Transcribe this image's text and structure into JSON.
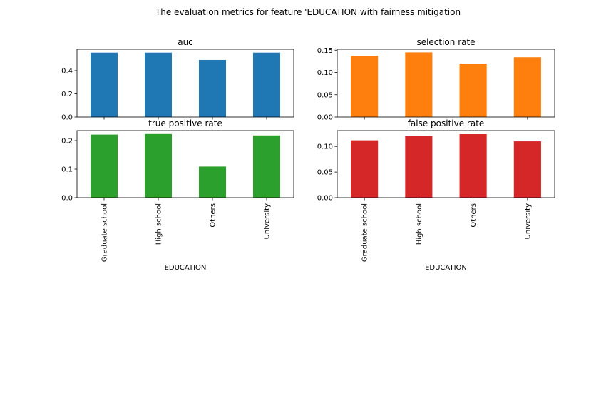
{
  "figure": {
    "title": "The evaluation metrics for feature 'EDUCATION with fairness mitigation"
  },
  "chart_data": [
    {
      "type": "bar",
      "title": "auc",
      "categories": [
        "Graduate school",
        "High school",
        "Others",
        "University"
      ],
      "values": [
        0.555,
        0.555,
        0.492,
        0.555
      ],
      "color": "#1f77b4",
      "ylim": [
        0,
        0.584
      ],
      "yticks": [
        0.0,
        0.2,
        0.4
      ],
      "ytick_labels": [
        "0.0",
        "0.2",
        "0.4"
      ],
      "xlabel": "",
      "show_category_labels": false
    },
    {
      "type": "bar",
      "title": "selection rate",
      "categories": [
        "Graduate school",
        "High school",
        "Others",
        "University"
      ],
      "values": [
        0.137,
        0.145,
        0.12,
        0.134
      ],
      "color": "#ff7f0e",
      "ylim": [
        0,
        0.152
      ],
      "yticks": [
        0.0,
        0.05,
        0.1,
        0.15
      ],
      "ytick_labels": [
        "0.00",
        "0.05",
        "0.10",
        "0.15"
      ],
      "xlabel": "",
      "show_category_labels": false
    },
    {
      "type": "bar",
      "title": "true positive rate",
      "categories": [
        "Graduate school",
        "High school",
        "Others",
        "University"
      ],
      "values": [
        0.221,
        0.223,
        0.109,
        0.218
      ],
      "color": "#2ca02c",
      "ylim": [
        0,
        0.235
      ],
      "yticks": [
        0.0,
        0.1,
        0.2
      ],
      "ytick_labels": [
        "0.0",
        "0.1",
        "0.2"
      ],
      "xlabel": "EDUCATION",
      "show_category_labels": true
    },
    {
      "type": "bar",
      "title": "false positive rate",
      "categories": [
        "Graduate school",
        "High school",
        "Others",
        "University"
      ],
      "values": [
        0.112,
        0.12,
        0.124,
        0.11
      ],
      "color": "#d62728",
      "ylim": [
        0,
        0.131
      ],
      "yticks": [
        0.0,
        0.05,
        0.1
      ],
      "ytick_labels": [
        "0.00",
        "0.05",
        "0.10"
      ],
      "xlabel": "EDUCATION",
      "show_category_labels": true
    }
  ]
}
